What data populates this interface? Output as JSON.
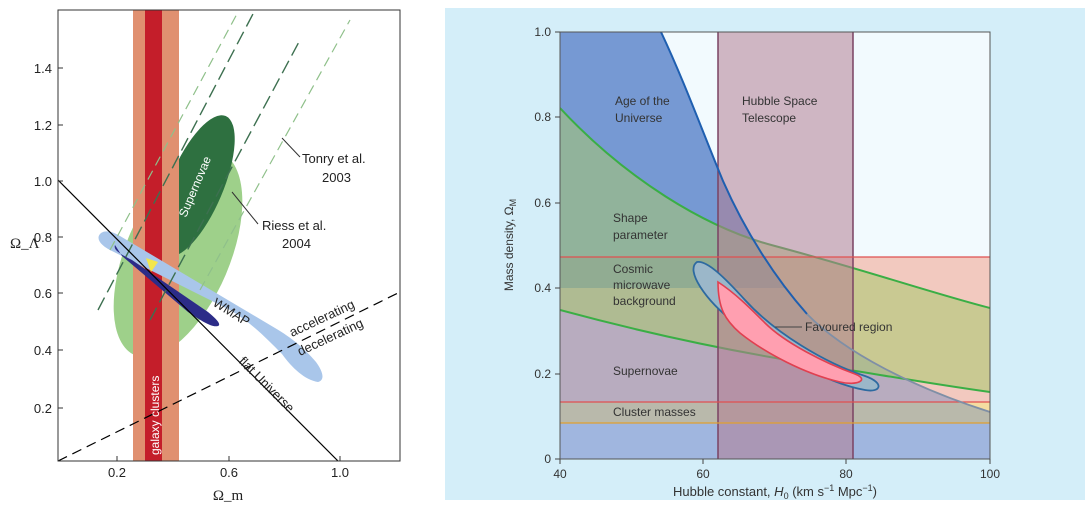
{
  "chart_data": [
    {
      "type": "area",
      "xlabel": "Ω_m",
      "ylabel": "Ω_Λ",
      "xlim": [
        0,
        1.1
      ],
      "ylim": [
        0,
        1.6
      ],
      "grid": false,
      "x_ticks": [
        0.2,
        0.6,
        1.0
      ],
      "x_tick_labels": [
        "0.2",
        "0.6",
        "1.0"
      ],
      "y_ticks": [
        0.2,
        0.4,
        0.6,
        0.8,
        1.0,
        1.2,
        1.4
      ],
      "y_tick_labels": [
        "0.2",
        "0.4",
        "0.6",
        "0.8",
        "1.0",
        "1.2",
        "1.4"
      ],
      "regions": [
        {
          "name": "galaxy clusters",
          "kind": "band",
          "axis": "x",
          "outer": [
            0.27,
            0.43
          ],
          "inner": [
            0.31,
            0.37
          ],
          "color_outer": "#e09070",
          "color_inner": "#c41e2a"
        },
        {
          "name": "Supernovae",
          "kind": "ellipse",
          "center": [
            0.37,
            0.86
          ],
          "color": "#2e7040"
        },
        {
          "name": "Supernovae (outer)",
          "kind": "ellipse",
          "center": [
            0.35,
            0.78
          ],
          "color": "#9ed08a"
        },
        {
          "name": "WMAP",
          "kind": "ellipse",
          "center": [
            0.38,
            0.66
          ],
          "color": "#a9c6ea",
          "inner_color": "#2c2c88"
        }
      ],
      "lines": [
        {
          "label": "flat Universe",
          "points": [
            [
              0,
              1.0
            ],
            [
              1.0,
              0
            ]
          ]
        },
        {
          "label": "accelerating / decelerating",
          "points": [
            [
              0,
              0
            ],
            [
              1.1,
              0.6
            ]
          ],
          "style": "dashed"
        }
      ],
      "annotations": [
        {
          "text": "Tonry et al.",
          "line2": "2003"
        },
        {
          "text": "Riess et al.",
          "line2": "2004"
        },
        {
          "text": "WMAP"
        },
        {
          "text": "accelerating"
        },
        {
          "text": "decelerating"
        },
        {
          "text": "flat Universe"
        },
        {
          "text": "galaxy clusters"
        },
        {
          "text": "Supernovae"
        }
      ]
    },
    {
      "type": "area",
      "xlabel": "Hubble constant, H0 (km s⁻¹ Mpc⁻¹)",
      "xlabel_parts": [
        "Hubble constant, ",
        "H",
        "0",
        " (km s",
        "−1",
        " Mpc",
        "−1",
        ")"
      ],
      "ylabel": "Mass density, Ω_M",
      "ylabel_parts": [
        "Mass density, Ω",
        "M"
      ],
      "xlim": [
        40,
        100
      ],
      "ylim": [
        0,
        1.0
      ],
      "grid": true,
      "x_ticks": [
        40,
        60,
        80,
        100
      ],
      "x_tick_labels": [
        "40",
        "60",
        "80",
        "100"
      ],
      "y_ticks": [
        0,
        0.2,
        0.4,
        0.6,
        0.8,
        1.0
      ],
      "y_tick_labels": [
        "0",
        "0.2",
        "0.4",
        "0.6",
        "0.8",
        "1.0"
      ],
      "regions": [
        {
          "name": "Hubble Space Telescope",
          "kind": "band",
          "axis": "x",
          "range": [
            62.5,
            81
          ],
          "color": "#b27d92"
        },
        {
          "name": "Cosmic microwave background",
          "kind": "band",
          "axis": "y",
          "range": [
            0.13,
            0.47
          ],
          "color": "#f2a08a"
        },
        {
          "name": "Cluster masses",
          "kind": "band",
          "axis": "y",
          "range": [
            0.08,
            0.13
          ],
          "color": "#f5d690"
        },
        {
          "name": "Age of the Universe",
          "kind": "area",
          "boundary": [
            [
              54,
              1.0
            ],
            [
              58,
              0.85
            ],
            [
              62,
              0.72
            ],
            [
              66,
              0.57
            ],
            [
              70,
              0.45
            ],
            [
              75,
              0.36
            ],
            [
              80,
              0.29
            ],
            [
              85,
              0.23
            ],
            [
              90,
              0.18
            ],
            [
              95,
              0.14
            ],
            [
              100,
              0.11
            ]
          ],
          "color": "#3f70c0"
        },
        {
          "name": "Shape parameter",
          "kind": "band",
          "upper": [
            [
              40,
              0.81
            ],
            [
              50,
              0.68
            ],
            [
              60,
              0.59
            ],
            [
              70,
              0.52
            ],
            [
              80,
              0.46
            ],
            [
              90,
              0.4
            ],
            [
              100,
              0.35
            ]
          ],
          "lower": [
            [
              40,
              0.35
            ],
            [
              50,
              0.28
            ],
            [
              60,
              0.24
            ],
            [
              70,
              0.21
            ],
            [
              80,
              0.19
            ],
            [
              90,
              0.17
            ],
            [
              100,
              0.16
            ]
          ],
          "color": "#a8c86e"
        },
        {
          "name": "Favoured region",
          "kind": "contour",
          "color": "#ff9fb0"
        }
      ],
      "annotations": [
        {
          "text": "Age of the",
          "line2": "Universe"
        },
        {
          "text": "Hubble Space",
          "line2": "Telescope"
        },
        {
          "text": "Shape",
          "line2": "parameter"
        },
        {
          "text": "Cosmic",
          "line2": "microwave",
          "line3": "background"
        },
        {
          "text": "Favoured region"
        },
        {
          "text": "Supernovae"
        },
        {
          "text": "Cluster masses"
        }
      ]
    }
  ]
}
